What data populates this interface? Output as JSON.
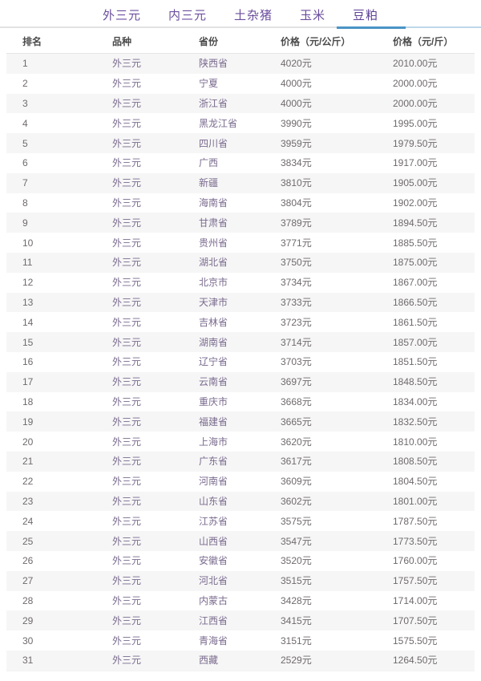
{
  "tabs": [
    {
      "label": "外三元",
      "name": "tab-waisanyuan",
      "active": false
    },
    {
      "label": "内三元",
      "name": "tab-neisanyuan",
      "active": false
    },
    {
      "label": "土杂猪",
      "name": "tab-tuzazhu",
      "active": false
    },
    {
      "label": "玉米",
      "name": "tab-yumi",
      "active": false
    },
    {
      "label": "豆粕",
      "name": "tab-doupo",
      "active": true
    }
  ],
  "colors": {
    "tab_text": "#6b4e9e",
    "tab_text_active": "#5d3f96",
    "underline_active": "#4a94c6",
    "underline_light": "#bdd7e8",
    "underline_gray": "#e2e2e2",
    "stripe": "#f6f6f6",
    "header_text": "#4a4a4a",
    "body_text": "#6f6a6d",
    "name_text": "#7a6b8e"
  },
  "table": {
    "headers": [
      "排名",
      "品种",
      "省份",
      "价格（元/公斤）",
      "价格（元/斤）"
    ],
    "rows": [
      {
        "rank": "1",
        "breed": "外三元",
        "province": "陕西省",
        "price_kg": "4020元",
        "price_jin": "2010.00元"
      },
      {
        "rank": "2",
        "breed": "外三元",
        "province": "宁夏",
        "price_kg": "4000元",
        "price_jin": "2000.00元"
      },
      {
        "rank": "3",
        "breed": "外三元",
        "province": "浙江省",
        "price_kg": "4000元",
        "price_jin": "2000.00元"
      },
      {
        "rank": "4",
        "breed": "外三元",
        "province": "黑龙江省",
        "price_kg": "3990元",
        "price_jin": "1995.00元"
      },
      {
        "rank": "5",
        "breed": "外三元",
        "province": "四川省",
        "price_kg": "3959元",
        "price_jin": "1979.50元"
      },
      {
        "rank": "6",
        "breed": "外三元",
        "province": "广西",
        "price_kg": "3834元",
        "price_jin": "1917.00元"
      },
      {
        "rank": "7",
        "breed": "外三元",
        "province": "新疆",
        "price_kg": "3810元",
        "price_jin": "1905.00元"
      },
      {
        "rank": "8",
        "breed": "外三元",
        "province": "海南省",
        "price_kg": "3804元",
        "price_jin": "1902.00元"
      },
      {
        "rank": "9",
        "breed": "外三元",
        "province": "甘肃省",
        "price_kg": "3789元",
        "price_jin": "1894.50元"
      },
      {
        "rank": "10",
        "breed": "外三元",
        "province": "贵州省",
        "price_kg": "3771元",
        "price_jin": "1885.50元"
      },
      {
        "rank": "11",
        "breed": "外三元",
        "province": "湖北省",
        "price_kg": "3750元",
        "price_jin": "1875.00元"
      },
      {
        "rank": "12",
        "breed": "外三元",
        "province": "北京市",
        "price_kg": "3734元",
        "price_jin": "1867.00元"
      },
      {
        "rank": "13",
        "breed": "外三元",
        "province": "天津市",
        "price_kg": "3733元",
        "price_jin": "1866.50元"
      },
      {
        "rank": "14",
        "breed": "外三元",
        "province": "吉林省",
        "price_kg": "3723元",
        "price_jin": "1861.50元"
      },
      {
        "rank": "15",
        "breed": "外三元",
        "province": "湖南省",
        "price_kg": "3714元",
        "price_jin": "1857.00元"
      },
      {
        "rank": "16",
        "breed": "外三元",
        "province": "辽宁省",
        "price_kg": "3703元",
        "price_jin": "1851.50元"
      },
      {
        "rank": "17",
        "breed": "外三元",
        "province": "云南省",
        "price_kg": "3697元",
        "price_jin": "1848.50元"
      },
      {
        "rank": "18",
        "breed": "外三元",
        "province": "重庆市",
        "price_kg": "3668元",
        "price_jin": "1834.00元"
      },
      {
        "rank": "19",
        "breed": "外三元",
        "province": "福建省",
        "price_kg": "3665元",
        "price_jin": "1832.50元"
      },
      {
        "rank": "20",
        "breed": "外三元",
        "province": "上海市",
        "price_kg": "3620元",
        "price_jin": "1810.00元"
      },
      {
        "rank": "21",
        "breed": "外三元",
        "province": "广东省",
        "price_kg": "3617元",
        "price_jin": "1808.50元"
      },
      {
        "rank": "22",
        "breed": "外三元",
        "province": "河南省",
        "price_kg": "3609元",
        "price_jin": "1804.50元"
      },
      {
        "rank": "23",
        "breed": "外三元",
        "province": "山东省",
        "price_kg": "3602元",
        "price_jin": "1801.00元"
      },
      {
        "rank": "24",
        "breed": "外三元",
        "province": "江苏省",
        "price_kg": "3575元",
        "price_jin": "1787.50元"
      },
      {
        "rank": "25",
        "breed": "外三元",
        "province": "山西省",
        "price_kg": "3547元",
        "price_jin": "1773.50元"
      },
      {
        "rank": "26",
        "breed": "外三元",
        "province": "安徽省",
        "price_kg": "3520元",
        "price_jin": "1760.00元"
      },
      {
        "rank": "27",
        "breed": "外三元",
        "province": "河北省",
        "price_kg": "3515元",
        "price_jin": "1757.50元"
      },
      {
        "rank": "28",
        "breed": "外三元",
        "province": "内蒙古",
        "price_kg": "3428元",
        "price_jin": "1714.00元"
      },
      {
        "rank": "29",
        "breed": "外三元",
        "province": "江西省",
        "price_kg": "3415元",
        "price_jin": "1707.50元"
      },
      {
        "rank": "30",
        "breed": "外三元",
        "province": "青海省",
        "price_kg": "3151元",
        "price_jin": "1575.50元"
      },
      {
        "rank": "31",
        "breed": "外三元",
        "province": "西藏",
        "price_kg": "2529元",
        "price_jin": "1264.50元"
      }
    ]
  }
}
